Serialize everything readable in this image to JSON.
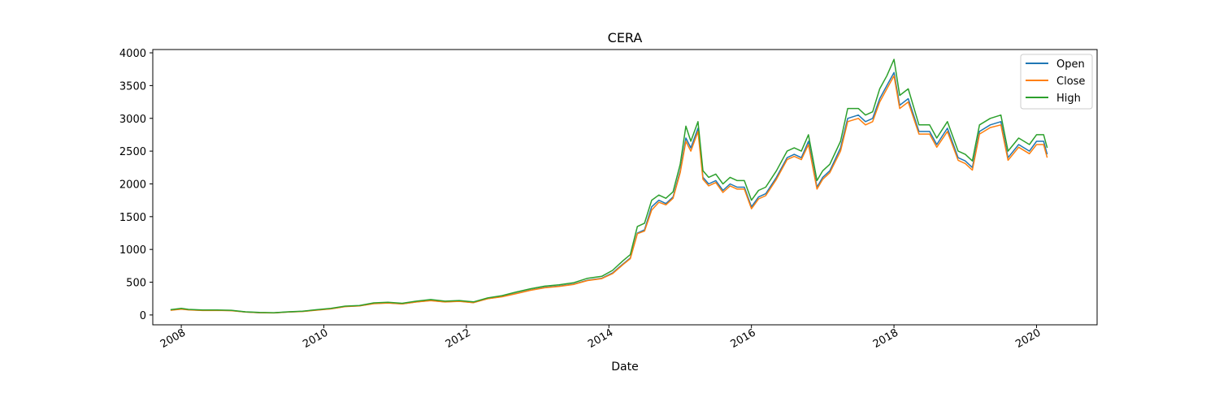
{
  "chart_data": {
    "type": "line",
    "title": "CERA",
    "xlabel": "Date",
    "ylabel": "",
    "xlim": [
      2007.6,
      2020.85
    ],
    "ylim": [
      -150,
      4050
    ],
    "x_ticks": [
      2008,
      2010,
      2012,
      2014,
      2016,
      2018,
      2020
    ],
    "x_tick_labels": [
      "2008",
      "2010",
      "2012",
      "2014",
      "2016",
      "2018",
      "2020"
    ],
    "y_ticks": [
      0,
      500,
      1000,
      1500,
      2000,
      2500,
      3000,
      3500,
      4000
    ],
    "y_tick_labels": [
      "0",
      "500",
      "1000",
      "1500",
      "2000",
      "2500",
      "3000",
      "3500",
      "4000"
    ],
    "legend_position": "top-right",
    "grid": false,
    "x": [
      2007.85,
      2008.0,
      2008.1,
      2008.3,
      2008.5,
      2008.7,
      2008.9,
      2009.1,
      2009.3,
      2009.5,
      2009.7,
      2009.9,
      2010.1,
      2010.3,
      2010.5,
      2010.7,
      2010.9,
      2011.1,
      2011.3,
      2011.5,
      2011.7,
      2011.9,
      2012.1,
      2012.3,
      2012.5,
      2012.7,
      2012.9,
      2013.1,
      2013.3,
      2013.5,
      2013.7,
      2013.9,
      2014.05,
      2014.2,
      2014.3,
      2014.4,
      2014.5,
      2014.6,
      2014.7,
      2014.8,
      2014.9,
      2015.0,
      2015.08,
      2015.15,
      2015.25,
      2015.32,
      2015.4,
      2015.5,
      2015.6,
      2015.7,
      2015.8,
      2015.9,
      2016.0,
      2016.1,
      2016.2,
      2016.35,
      2016.5,
      2016.6,
      2016.7,
      2016.8,
      2016.92,
      2017.0,
      2017.1,
      2017.25,
      2017.35,
      2017.5,
      2017.6,
      2017.7,
      2017.8,
      2017.9,
      2018.0,
      2018.08,
      2018.2,
      2018.35,
      2018.5,
      2018.6,
      2018.75,
      2018.9,
      2019.0,
      2019.1,
      2019.2,
      2019.35,
      2019.5,
      2019.6,
      2019.75,
      2019.9,
      2020.0,
      2020.1,
      2020.15
    ],
    "series": [
      {
        "name": "Open",
        "color": "#1f77b4",
        "values": [
          75,
          90,
          80,
          70,
          72,
          68,
          45,
          35,
          32,
          45,
          55,
          75,
          95,
          130,
          140,
          175,
          185,
          170,
          200,
          220,
          200,
          210,
          190,
          250,
          280,
          330,
          380,
          420,
          440,
          470,
          530,
          560,
          640,
          780,
          870,
          1250,
          1300,
          1650,
          1750,
          1700,
          1800,
          2200,
          2700,
          2550,
          2850,
          2100,
          2000,
          2050,
          1900,
          2000,
          1950,
          1950,
          1650,
          1800,
          1850,
          2100,
          2400,
          2450,
          2400,
          2650,
          1950,
          2100,
          2200,
          2550,
          3000,
          3050,
          2950,
          3000,
          3300,
          3500,
          3700,
          3200,
          3300,
          2800,
          2800,
          2600,
          2850,
          2400,
          2350,
          2250,
          2800,
          2900,
          2950,
          2400,
          2600,
          2500,
          2650,
          2650,
          2450
        ]
      },
      {
        "name": "Close",
        "color": "#ff7f0e",
        "values": [
          72,
          88,
          78,
          68,
          70,
          66,
          44,
          34,
          31,
          44,
          53,
          73,
          93,
          128,
          138,
          172,
          182,
          168,
          198,
          218,
          198,
          208,
          188,
          248,
          278,
          326,
          376,
          415,
          435,
          465,
          525,
          555,
          630,
          770,
          860,
          1240,
          1280,
          1600,
          1720,
          1680,
          1780,
          2170,
          2650,
          2500,
          2800,
          2070,
          1970,
          2020,
          1870,
          1970,
          1920,
          1920,
          1620,
          1770,
          1820,
          2070,
          2370,
          2420,
          2370,
          2600,
          1920,
          2070,
          2170,
          2500,
          2950,
          3000,
          2900,
          2950,
          3250,
          3450,
          3650,
          3150,
          3250,
          2760,
          2760,
          2560,
          2800,
          2360,
          2310,
          2210,
          2760,
          2860,
          2900,
          2360,
          2560,
          2460,
          2600,
          2600,
          2400
        ]
      },
      {
        "name": "High",
        "color": "#2ca02c",
        "values": [
          80,
          100,
          85,
          75,
          76,
          72,
          48,
          38,
          35,
          48,
          58,
          80,
          100,
          135,
          145,
          185,
          195,
          178,
          210,
          235,
          210,
          220,
          200,
          260,
          295,
          350,
          400,
          440,
          460,
          490,
          560,
          590,
          680,
          830,
          920,
          1350,
          1400,
          1750,
          1830,
          1780,
          1880,
          2300,
          2880,
          2650,
          2950,
          2200,
          2100,
          2150,
          2000,
          2100,
          2050,
          2050,
          1750,
          1900,
          1950,
          2200,
          2500,
          2550,
          2500,
          2750,
          2050,
          2200,
          2300,
          2650,
          3150,
          3150,
          3050,
          3100,
          3450,
          3650,
          3900,
          3350,
          3450,
          2900,
          2900,
          2700,
          2950,
          2500,
          2450,
          2350,
          2900,
          3000,
          3050,
          2500,
          2700,
          2600,
          2750,
          2750,
          2550
        ]
      }
    ]
  }
}
